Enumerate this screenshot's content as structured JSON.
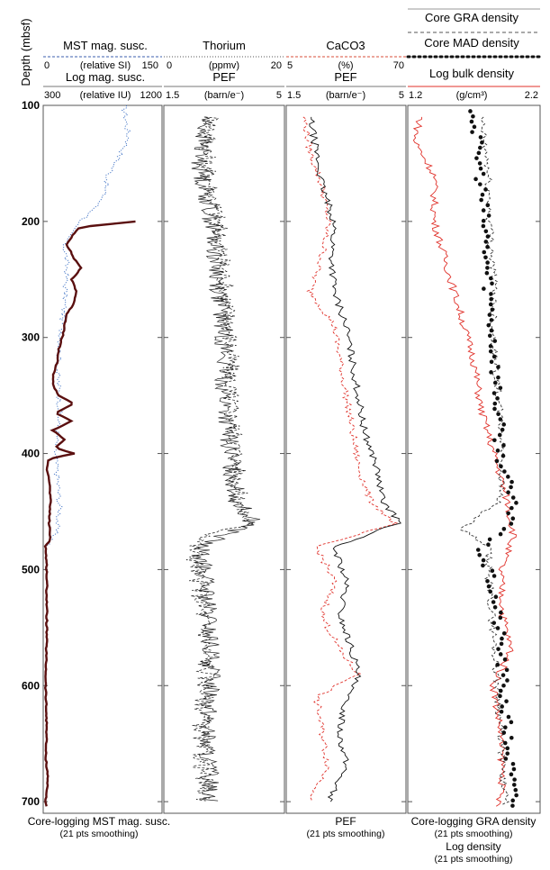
{
  "chart_data": {
    "type": "line",
    "y_axis": {
      "label": "Depth (mbsf)",
      "range": [
        100,
        710
      ],
      "ticks": [
        "100",
        "200",
        "300",
        "400",
        "500",
        "600",
        "700"
      ],
      "tick_values": [
        100,
        200,
        300,
        400,
        500,
        600,
        700
      ],
      "inverted": true
    },
    "tracks": [
      {
        "headers": [
          {
            "title": "MST mag. susc.",
            "unit": "(relative SI)",
            "min": "0",
            "max": "150",
            "style": "dashed",
            "color": "#3b5fae"
          },
          {
            "title": "Log mag. susc.",
            "unit": "(relative IU)",
            "min": "300",
            "max": "1200",
            "style": "solid",
            "color": "#444444"
          }
        ],
        "footer": [
          "Core-logging MST mag. susc.",
          "(21 pts smoothing)"
        ],
        "series": [
          {
            "style": "dotted",
            "color": "#3b6fc4",
            "depth": [
              100,
              130,
              160,
              180,
              195,
              205,
              220,
              240,
              270,
              300,
              330,
              360,
              400,
              420,
              450,
              470,
              480
            ],
            "values": [
              0.68,
              0.72,
              0.55,
              0.5,
              0.38,
              0.25,
              0.18,
              0.2,
              0.18,
              0.15,
              0.12,
              0.14,
              0.1,
              0.12,
              0.14,
              0.1,
              0.03
            ]
          },
          {
            "style": "smoothed",
            "color": "#5a0f0f",
            "depth": [
              200,
              205,
              212,
              220,
              232,
              240,
              250,
              260,
              270,
              280,
              290,
              300,
              310,
              320,
              330,
              340,
              350,
              357,
              365,
              372,
              380,
              388,
              395,
              400,
              405,
              412,
              420,
              440,
              460,
              475,
              480,
              500,
              550,
              600,
              640,
              660,
              680,
              700,
              705
            ],
            "values": [
              0.78,
              0.3,
              0.25,
              0.2,
              0.26,
              0.32,
              0.24,
              0.28,
              0.26,
              0.2,
              0.18,
              0.16,
              0.13,
              0.12,
              0.09,
              0.08,
              0.13,
              0.26,
              0.1,
              0.24,
              0.08,
              0.18,
              0.1,
              0.26,
              0.04,
              0.03,
              0.05,
              0.06,
              0.05,
              0.06,
              0.02,
              0.03,
              0.03,
              0.02,
              0.03,
              0.02,
              0.04,
              0.02,
              0.03
            ]
          }
        ]
      },
      {
        "headers": [
          {
            "title": "Thorium",
            "unit": "(ppmv)",
            "min": "0",
            "max": "20",
            "style": "dotted",
            "color": "#444444"
          },
          {
            "title": "PEF",
            "unit": "(barn/e⁻)",
            "min": "1.5",
            "max": "5",
            "style": "solid",
            "color": "#444444"
          }
        ],
        "footer": [],
        "series": [
          {
            "style": "dashed",
            "color": "#111111",
            "depth": [
              110,
              150,
              200,
              250,
              300,
              350,
              400,
              440,
              460,
              470,
              480,
              520,
              560,
              600,
              650,
              700
            ],
            "values": [
              0.4,
              0.35,
              0.45,
              0.5,
              0.55,
              0.55,
              0.6,
              0.62,
              0.7,
              0.4,
              0.25,
              0.3,
              0.35,
              0.35,
              0.3,
              0.35
            ]
          },
          {
            "style": "solid",
            "color": "#222222",
            "depth": [
              110,
              150,
              200,
              250,
              300,
              350,
              400,
              440,
              460,
              470,
              480,
              520,
              560,
              600,
              650,
              700
            ],
            "values": [
              0.35,
              0.3,
              0.4,
              0.45,
              0.5,
              0.5,
              0.55,
              0.6,
              0.75,
              0.5,
              0.3,
              0.35,
              0.38,
              0.4,
              0.35,
              0.4
            ]
          }
        ]
      },
      {
        "headers": [
          {
            "title": "CaCO3",
            "unit": "(%)",
            "min": "5",
            "max": "70",
            "style": "dashed",
            "color": "#d94c3a"
          },
          {
            "title": "PEF",
            "unit": "(barn/e⁻)",
            "min": "1.5",
            "max": "5",
            "style": "solid",
            "color": "#444444"
          }
        ],
        "footer": [
          "PEF",
          "(21 pts smoothing)"
        ],
        "series": [
          {
            "style": "dashed",
            "color": "#e0312a",
            "depth": [
              110,
              140,
              170,
              200,
              230,
              260,
              290,
              320,
              350,
              380,
              410,
              440,
              460,
              480,
              510,
              540,
              570,
              590,
              610,
              640,
              670,
              700
            ],
            "values": [
              0.15,
              0.2,
              0.3,
              0.35,
              0.3,
              0.2,
              0.4,
              0.45,
              0.5,
              0.55,
              0.6,
              0.7,
              0.9,
              0.25,
              0.4,
              0.3,
              0.45,
              0.6,
              0.25,
              0.3,
              0.35,
              0.2
            ]
          },
          {
            "style": "solid",
            "color": "#111111",
            "depth": [
              110,
              140,
              170,
              200,
              230,
              260,
              290,
              320,
              350,
              380,
              410,
              440,
              460,
              480,
              510,
              540,
              570,
              590,
              610,
              640,
              670,
              700
            ],
            "values": [
              0.2,
              0.25,
              0.3,
              0.4,
              0.38,
              0.4,
              0.5,
              0.55,
              0.6,
              0.65,
              0.75,
              0.8,
              0.95,
              0.4,
              0.5,
              0.45,
              0.55,
              0.6,
              0.5,
              0.45,
              0.5,
              0.35
            ]
          }
        ]
      },
      {
        "headers": [
          {
            "title": "Core GRA density",
            "unit": "",
            "min": "",
            "max": "",
            "style": "dashed",
            "color": "#555555"
          },
          {
            "title": "Core MAD density",
            "unit": "",
            "min": "",
            "max": "",
            "style": "dots",
            "color": "#111111"
          },
          {
            "title": "Log bulk density",
            "unit": "(g/cm³)",
            "min": "1.2",
            "max": "2.2",
            "style": "solid",
            "color": "#e0312a"
          }
        ],
        "footer": [
          "Core-logging GRA density",
          "(21 pts smoothing)",
          "Log density",
          "(21 pts smoothing)"
        ],
        "series": [
          {
            "style": "solid",
            "color": "#e0312a",
            "depth": [
              110,
              130,
              160,
              200,
              240,
              280,
              320,
              360,
              400,
              440,
              470,
              500,
              540,
              570,
              600,
              640,
              680,
              705
            ],
            "values": [
              0.1,
              0.05,
              0.2,
              0.2,
              0.3,
              0.4,
              0.5,
              0.55,
              0.65,
              0.75,
              0.8,
              0.7,
              0.72,
              0.78,
              0.65,
              0.7,
              0.72,
              0.68
            ]
          },
          {
            "style": "dashed",
            "color": "#333333",
            "depth": [
              110,
              150,
              200,
              250,
              300,
              350,
              400,
              440,
              465,
              480,
              520,
              560,
              600,
              640,
              680,
              705
            ],
            "values": [
              0.55,
              0.6,
              0.62,
              0.65,
              0.65,
              0.68,
              0.72,
              0.7,
              0.4,
              0.6,
              0.62,
              0.65,
              0.68,
              0.7,
              0.72,
              0.74
            ]
          },
          {
            "style": "dots",
            "color": "#111111",
            "depth": [
              105,
              130,
              160,
              200,
              240,
              280,
              320,
              360,
              400,
              440,
              460,
              480,
              520,
              560,
              600,
              640,
              680,
              705
            ],
            "values": [
              0.5,
              0.52,
              0.55,
              0.58,
              0.6,
              0.63,
              0.66,
              0.68,
              0.7,
              0.78,
              0.8,
              0.55,
              0.65,
              0.7,
              0.72,
              0.75,
              0.78,
              0.8
            ]
          }
        ]
      }
    ]
  }
}
